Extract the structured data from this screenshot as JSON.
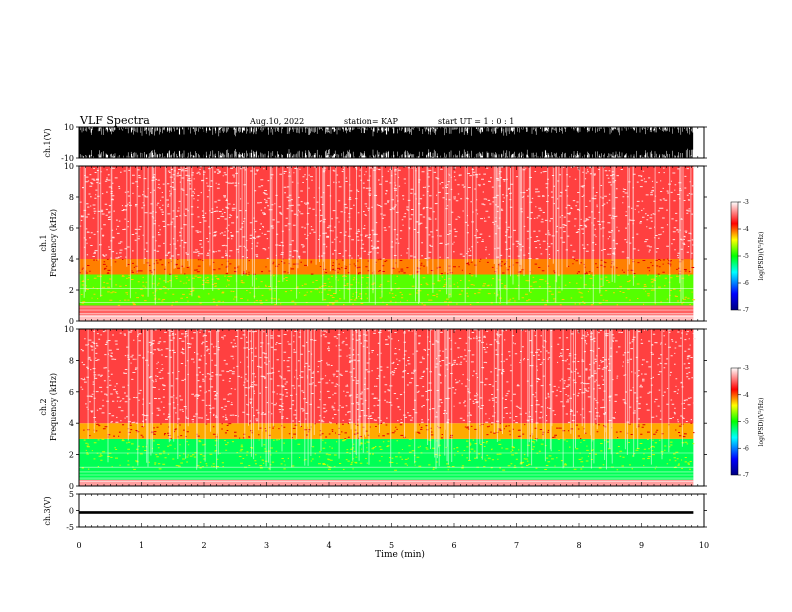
{
  "header": {
    "title": "VLF Spectra",
    "date": "Aug.10, 2022",
    "station": "station= KAP",
    "start": "start  UT =   1 : 0  : 1"
  },
  "chart_data": [
    {
      "type": "line",
      "panel": "ch1-waveform",
      "ylabel": "ch.1(V)",
      "ylim": [
        -10,
        10
      ],
      "yticks": [
        10,
        -10
      ],
      "xlim": [
        0,
        10
      ],
      "data_extent_x": [
        0,
        9.83
      ],
      "description_values": "dense waveform saturating between -10 and 10 V"
    },
    {
      "type": "heatmap",
      "panel": "ch1-spectrogram",
      "ylabel": "ch.1 Frequency (kHz)",
      "ylim": [
        0,
        10
      ],
      "yticks": [
        0,
        2,
        4,
        6,
        8,
        10
      ],
      "xlim": [
        0,
        10
      ],
      "data_extent_x": [
        0,
        9.83
      ],
      "level_bands": [
        {
          "from_khz": 0,
          "to_khz": 0.4,
          "level": -3.2
        },
        {
          "from_khz": 0.4,
          "to_khz": 1.0,
          "level": -3.5
        },
        {
          "from_khz": 1.0,
          "to_khz": 3.0,
          "level": -4.8
        },
        {
          "from_khz": 3.0,
          "to_khz": 4.0,
          "level": -4.1
        },
        {
          "from_khz": 4.0,
          "to_khz": 10,
          "level": -3.6
        }
      ]
    },
    {
      "type": "heatmap",
      "panel": "ch2-spectrogram",
      "ylabel": "ch.2 Frequency (kHz)",
      "ylim": [
        0,
        10
      ],
      "yticks": [
        0,
        2,
        4,
        6,
        8,
        10
      ],
      "xlim": [
        0,
        10
      ],
      "data_extent_x": [
        0,
        9.83
      ],
      "level_bands": [
        {
          "from_khz": 0,
          "to_khz": 0.4,
          "level": -3.3
        },
        {
          "from_khz": 0.4,
          "to_khz": 3.0,
          "level": -5.2
        },
        {
          "from_khz": 3.0,
          "to_khz": 4.0,
          "level": -4.2
        },
        {
          "from_khz": 4.0,
          "to_khz": 10,
          "level": -3.6
        }
      ]
    },
    {
      "type": "line",
      "panel": "ch3-waveform",
      "ylabel": "ch.3(V)",
      "ylim": [
        -5,
        5
      ],
      "yticks": [
        5,
        0,
        -5
      ],
      "xlim": [
        0,
        10
      ],
      "data_extent_x": [
        0,
        9.83
      ],
      "band": [
        -1.0,
        -0.2
      ]
    }
  ],
  "xaxis": {
    "label": "Time (min)",
    "ticks": [
      "0",
      "1",
      "2",
      "3",
      "4",
      "5",
      "6",
      "7",
      "8",
      "9",
      "10"
    ]
  },
  "colorbar": {
    "label": "log(PSD)(V²/Hz)",
    "ticks": [
      "-3",
      "-4",
      "-5",
      "-6",
      "-7"
    ],
    "range": [
      -7,
      -3
    ],
    "colors": [
      "#000080",
      "#0000ff",
      "#00ffff",
      "#00ff00",
      "#ffff00",
      "#ff0000",
      "#ffffff"
    ]
  }
}
